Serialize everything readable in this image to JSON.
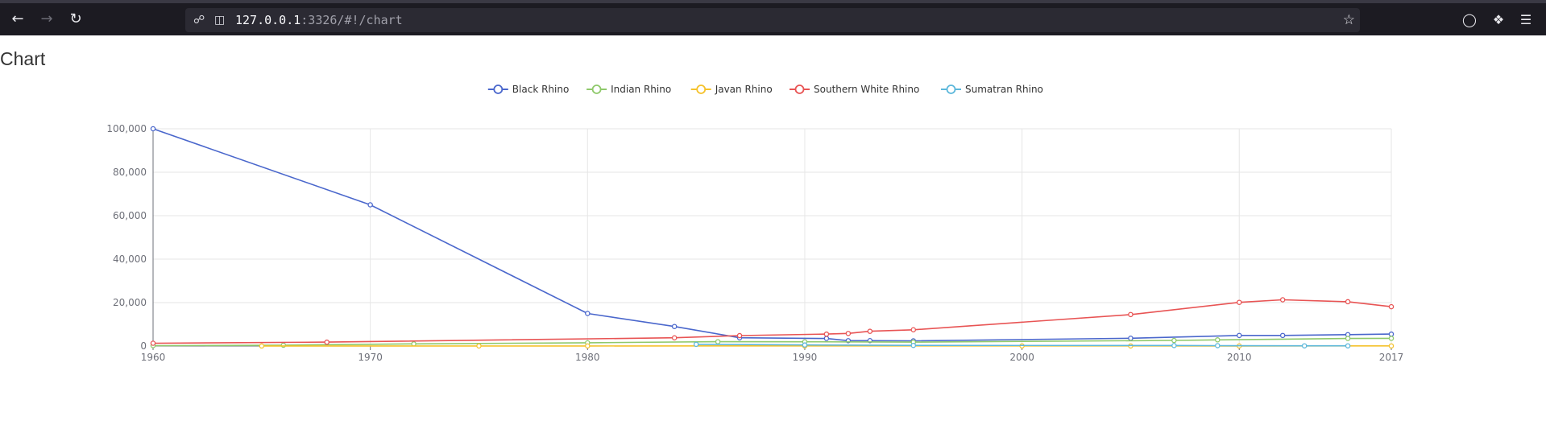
{
  "browser": {
    "url_host": "127.0.0.1",
    "url_rest": ":3326/#!/chart",
    "icons": {
      "back": "arrow-left-icon",
      "forward": "arrow-right-icon",
      "reload": "reload-icon",
      "shield": "shield-icon",
      "page": "page-icon",
      "bookmark": "star-icon",
      "pocket": "pocket-icon",
      "extensions": "extensions-icon",
      "menu": "hamburger-menu-icon"
    }
  },
  "page": {
    "title": "Chart"
  },
  "chart_data": {
    "type": "line",
    "title": "",
    "xlabel": "",
    "ylabel": "",
    "xlim": [
      1960,
      2017
    ],
    "ylim": [
      0,
      100000
    ],
    "x_ticks": [
      "1960",
      "1970",
      "1980",
      "1990",
      "2000",
      "2010",
      "2017"
    ],
    "y_ticks": [
      "0",
      "20,000",
      "40,000",
      "60,000",
      "80,000",
      "100,000"
    ],
    "grid": true,
    "legend_position": "top-center",
    "series": [
      {
        "name": "Black Rhino",
        "color": "#4a67cc",
        "points": [
          [
            1960,
            100000
          ],
          [
            1970,
            65000
          ],
          [
            1980,
            15000
          ],
          [
            1984,
            9000
          ],
          [
            1987,
            3800
          ],
          [
            1991,
            3500
          ],
          [
            1992,
            2475
          ],
          [
            1993,
            2500
          ],
          [
            1995,
            2410
          ],
          [
            2005,
            3610
          ],
          [
            2010,
            4880
          ],
          [
            2012,
            4880
          ],
          [
            2015,
            5250
          ],
          [
            2017,
            5500
          ]
        ]
      },
      {
        "name": "Indian Rhino",
        "color": "#8fc96b",
        "points": [
          [
            1960,
            200
          ],
          [
            1966,
            400
          ],
          [
            1972,
            1000
          ],
          [
            1980,
            1500
          ],
          [
            1986,
            2000
          ],
          [
            1990,
            1950
          ],
          [
            1995,
            1800
          ],
          [
            2007,
            2575
          ],
          [
            2009,
            2850
          ],
          [
            2015,
            3500
          ],
          [
            2017,
            3550
          ]
        ]
      },
      {
        "name": "Javan Rhino",
        "color": "#f5c22c",
        "points": [
          [
            1965,
            30
          ],
          [
            1975,
            50
          ],
          [
            1980,
            50
          ],
          [
            1990,
            60
          ],
          [
            2000,
            60
          ],
          [
            2005,
            60
          ],
          [
            2010,
            50
          ],
          [
            2017,
            67
          ]
        ]
      },
      {
        "name": "Southern White Rhino",
        "color": "#e85454",
        "points": [
          [
            1960,
            1300
          ],
          [
            1968,
            1800
          ],
          [
            1984,
            3800
          ],
          [
            1987,
            4800
          ],
          [
            1991,
            5500
          ],
          [
            1992,
            5800
          ],
          [
            1993,
            6800
          ],
          [
            1995,
            7500
          ],
          [
            2005,
            14500
          ],
          [
            2010,
            20100
          ],
          [
            2012,
            21300
          ],
          [
            2015,
            20400
          ],
          [
            2017,
            18100
          ]
        ]
      },
      {
        "name": "Sumatran Rhino",
        "color": "#5db8db",
        "points": [
          [
            1985,
            800
          ],
          [
            1990,
            500
          ],
          [
            1995,
            300
          ],
          [
            2007,
            250
          ],
          [
            2009,
            200
          ],
          [
            2013,
            100
          ],
          [
            2015,
            100
          ]
        ]
      }
    ]
  }
}
